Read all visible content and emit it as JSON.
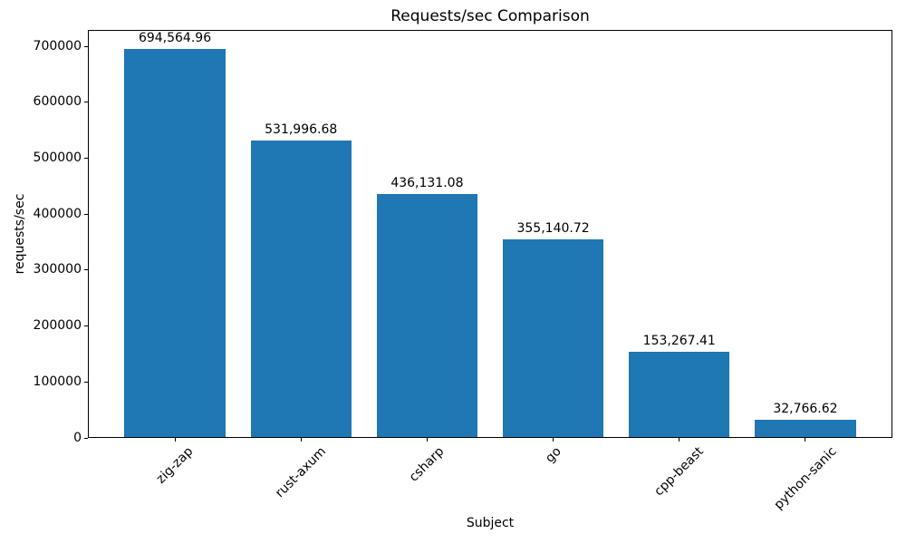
{
  "chart_data": {
    "type": "bar",
    "title": "Requests/sec Comparison",
    "xlabel": "Subject",
    "ylabel": "requests/sec",
    "categories": [
      "zig-zap",
      "rust-axum",
      "csharp",
      "go",
      "cpp-beast",
      "python-sanic"
    ],
    "values": [
      694564.96,
      531996.68,
      436131.08,
      355140.72,
      153267.41,
      32766.62
    ],
    "value_labels": [
      "694,564.96",
      "531,996.68",
      "436,131.08",
      "355,140.72",
      "153,267.41",
      "32,766.62"
    ],
    "yticks": [
      0,
      100000,
      200000,
      300000,
      400000,
      500000,
      600000,
      700000
    ],
    "ylim": [
      0,
      729293
    ],
    "xlim": [
      -0.69,
      5.69
    ],
    "bar_color": "#1f77b4",
    "text_color": "#000000",
    "grid": false,
    "legend": null
  }
}
